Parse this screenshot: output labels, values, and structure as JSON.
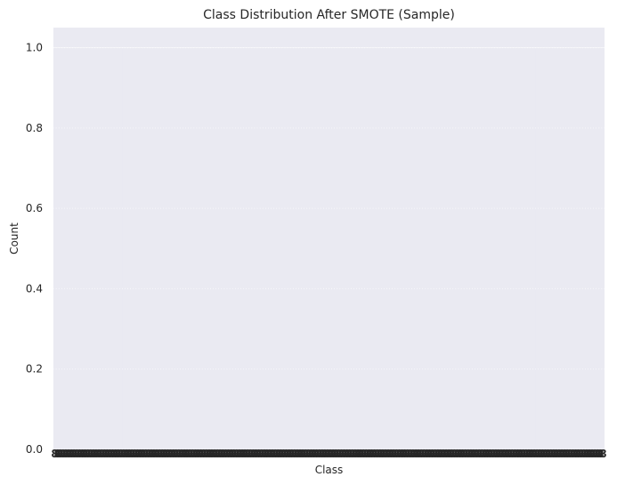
{
  "chart_data": {
    "type": "bar",
    "title": "Class Distribution After SMOTE (Sample)",
    "xlabel": "Class",
    "ylabel": "Count",
    "ylim": [
      0,
      1.05
    ],
    "yticks": [
      0.0,
      0.2,
      0.4,
      0.6,
      0.8,
      1.0
    ],
    "ytick_labels": [
      "0.0",
      "0.2",
      "0.4",
      "0.6",
      "0.8",
      "1.0"
    ],
    "xtick_labels_note": "x tick labels are overlapping and illegible",
    "category_count": 200,
    "values_all": 1,
    "grid": true,
    "colors": {
      "plot_background": "#eaeaf2",
      "bar": "#eaeaf2",
      "grid": "#ffffff",
      "text": "#262626",
      "page_background": "#ffffff"
    }
  }
}
